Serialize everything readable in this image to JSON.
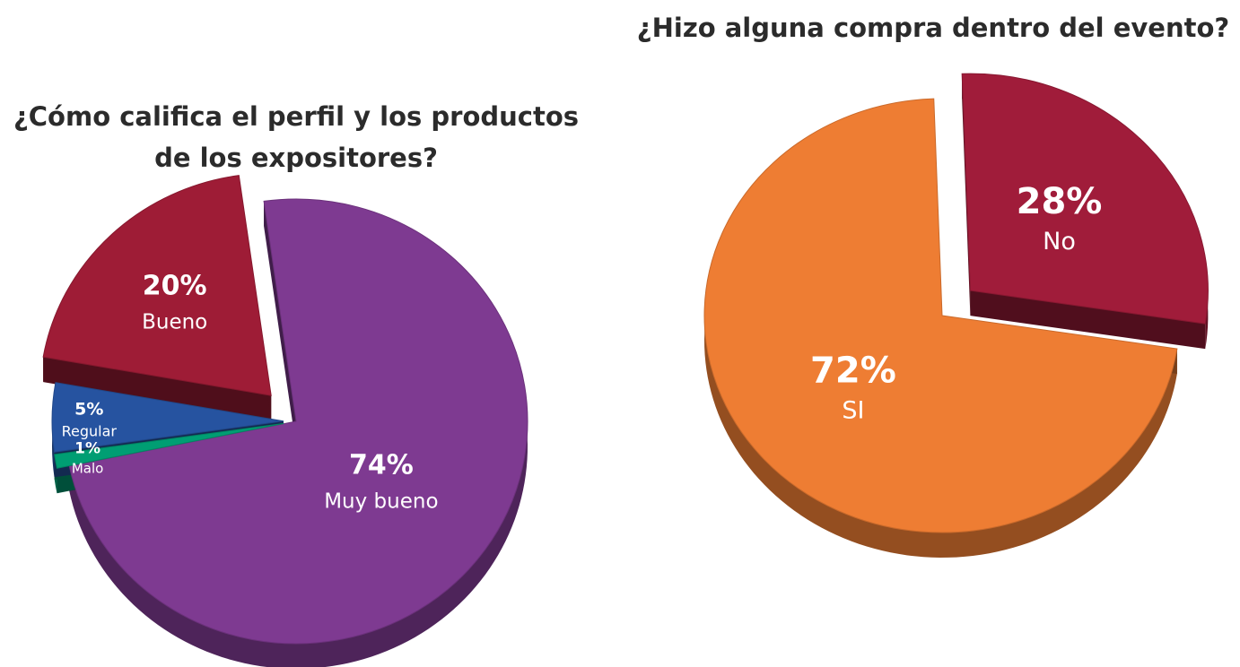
{
  "chart_data": [
    {
      "type": "pie",
      "title": "¿Cómo califica el perfil y los productos de los expositores?",
      "title_lines": [
        "¿Cómo califica el perfil y los productos",
        "de los expositores?"
      ],
      "slices": [
        {
          "label": "Muy bueno",
          "value": 74,
          "pct_text": "74%",
          "color": "#7E3A91"
        },
        {
          "label": "Malo",
          "value": 1,
          "pct_text": "1%",
          "color": "#009E73"
        },
        {
          "label": "Regular",
          "value": 5,
          "pct_text": "5%",
          "color": "#2653A0"
        },
        {
          "label": "Bueno",
          "value": 20,
          "pct_text": "20%",
          "color": "#9E1C36"
        }
      ],
      "style": "3d-exploded"
    },
    {
      "type": "pie",
      "title": "¿Hizo alguna compra dentro del evento?",
      "slices": [
        {
          "label": "No",
          "value": 28,
          "pct_text": "28%",
          "color": "#A01C3A"
        },
        {
          "label": "SI",
          "value": 72,
          "pct_text": "72%",
          "color": "#EE7D33"
        }
      ],
      "style": "3d-exploded"
    }
  ]
}
